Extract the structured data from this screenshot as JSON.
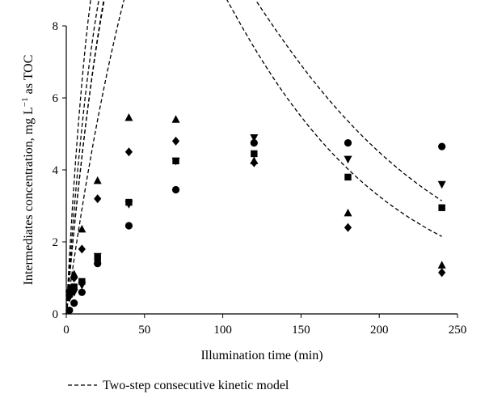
{
  "chart_data": {
    "type": "scatter",
    "title": "",
    "xlabel": "Illumination time (min)",
    "ylabel_main": "Intermediates concentration, mg L",
    "ylabel_sup": "−1",
    "ylabel_tail": " as TOC",
    "xlim": [
      0,
      250
    ],
    "ylim": [
      0,
      8
    ],
    "x_ticks": [
      "0",
      "50",
      "100",
      "150",
      "200",
      "250"
    ],
    "y_ticks": [
      "0",
      "2",
      "4",
      "6",
      "8"
    ],
    "grid": false,
    "legend": {
      "label": "Two-step consecutive kinetic model",
      "placement": "bottom"
    },
    "series": [
      {
        "marker": "triangle-up",
        "x": [
          2,
          5,
          10,
          20,
          40,
          70,
          120,
          180,
          240
        ],
        "y": [
          0.7,
          1.1,
          2.35,
          3.7,
          5.45,
          5.4,
          4.25,
          2.8,
          1.35
        ],
        "model": {
          "a": 0.0417,
          "b": 0.0105
        }
      },
      {
        "marker": "diamond",
        "x": [
          2,
          5,
          10,
          20,
          40,
          70,
          120,
          180,
          240
        ],
        "y": [
          0.65,
          1.0,
          1.8,
          3.2,
          4.5,
          4.8,
          4.2,
          2.4,
          1.15
        ],
        "model": {
          "a": 0.0318,
          "b": 0.0091
        }
      },
      {
        "marker": "triangle-down",
        "x": [
          2,
          5,
          10,
          20,
          40,
          70,
          120,
          180,
          240
        ],
        "y": [
          0.45,
          0.6,
          0.8,
          1.6,
          3.05,
          4.25,
          4.9,
          4.3,
          3.6
        ],
        "model": {
          "a": 0.0251,
          "b": 0.0026
        }
      },
      {
        "marker": "square",
        "x": [
          2,
          5,
          10,
          20,
          40,
          70,
          120,
          180,
          240
        ],
        "y": [
          0.55,
          0.75,
          0.9,
          1.55,
          3.1,
          4.25,
          4.45,
          3.8,
          2.95
        ],
        "model": {
          "a": 0.0252,
          "b": 0.0036
        }
      },
      {
        "marker": "circle",
        "x": [
          2,
          5,
          10,
          20,
          40,
          70,
          120,
          180,
          240
        ],
        "y": [
          0.1,
          0.3,
          0.6,
          1.4,
          2.45,
          3.45,
          4.75,
          4.75,
          4.65
        ],
        "model": {
          "a": 0.0158,
          "b": 0.0006
        }
      }
    ]
  }
}
